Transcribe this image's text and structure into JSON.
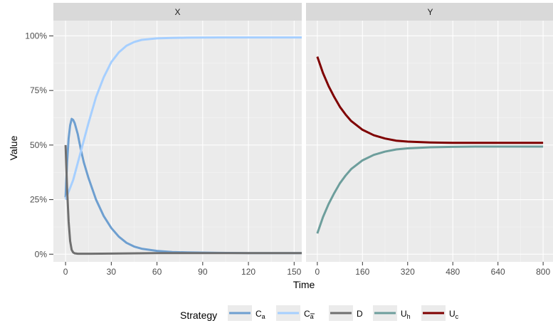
{
  "chart_data": {
    "type": "line",
    "y_label": "Value",
    "x_label": "Time",
    "legend": {
      "title": "Strategy",
      "position": "bottom",
      "entries": [
        {
          "id": "Ca",
          "base": "C",
          "sub": "a",
          "overline": false,
          "color": "#6E9FD0"
        },
        {
          "id": "Cabar",
          "base": "C",
          "sub": "a",
          "overline": true,
          "color": "#A6CFFF"
        },
        {
          "id": "D",
          "base": "D",
          "sub": "",
          "overline": false,
          "color": "#6F6F6F"
        },
        {
          "id": "Uh",
          "base": "U",
          "sub": "h",
          "overline": false,
          "color": "#6D9E9C"
        },
        {
          "id": "Uc",
          "base": "U",
          "sub": "c",
          "overline": false,
          "color": "#7F0000"
        }
      ]
    },
    "y_axis": {
      "range": [
        -3.5,
        107
      ],
      "ticks": [
        0,
        25,
        50,
        75,
        100
      ],
      "tick_labels": [
        "0%",
        "25%",
        "50%",
        "75%",
        "100%"
      ]
    },
    "panels": [
      {
        "strip": "X",
        "x_range": [
          -8,
          155
        ],
        "x_ticks": [
          0,
          30,
          60,
          90,
          120,
          150
        ],
        "series": [
          {
            "id": "Ca",
            "points": [
              [
                0,
                26
              ],
              [
                1,
                42
              ],
              [
                2,
                53
              ],
              [
                3,
                59
              ],
              [
                4,
                62
              ],
              [
                5,
                61.5
              ],
              [
                6,
                60
              ],
              [
                8,
                55
              ],
              [
                10,
                48
              ],
              [
                12,
                42
              ],
              [
                15,
                35
              ],
              [
                20,
                25
              ],
              [
                25,
                17.5
              ],
              [
                30,
                12
              ],
              [
                35,
                8
              ],
              [
                40,
                5.2
              ],
              [
                45,
                3.5
              ],
              [
                50,
                2.5
              ],
              [
                60,
                1.5
              ],
              [
                70,
                1
              ],
              [
                80,
                0.8
              ],
              [
                100,
                0.6
              ],
              [
                120,
                0.5
              ],
              [
                155,
                0.5
              ]
            ]
          },
          {
            "id": "Cabar",
            "points": [
              [
                0,
                25
              ],
              [
                5,
                34
              ],
              [
                10,
                47
              ],
              [
                15,
                60
              ],
              [
                20,
                72
              ],
              [
                25,
                81
              ],
              [
                30,
                88
              ],
              [
                35,
                92.5
              ],
              [
                40,
                95.5
              ],
              [
                45,
                97.2
              ],
              [
                50,
                98.2
              ],
              [
                60,
                98.9
              ],
              [
                70,
                99.1
              ],
              [
                80,
                99.2
              ],
              [
                100,
                99.3
              ],
              [
                155,
                99.3
              ]
            ]
          },
          {
            "id": "D",
            "points": [
              [
                0,
                50
              ],
              [
                1,
                30
              ],
              [
                2,
                15
              ],
              [
                3,
                6
              ],
              [
                4,
                2
              ],
              [
                5,
                0.8
              ],
              [
                6,
                0.4
              ],
              [
                8,
                0.2
              ],
              [
                15,
                0.2
              ],
              [
                30,
                0.3
              ],
              [
                60,
                0.5
              ],
              [
                100,
                0.5
              ],
              [
                155,
                0.5
              ]
            ]
          }
        ]
      },
      {
        "strip": "Y",
        "x_range": [
          -40,
          840
        ],
        "x_ticks": [
          0,
          160,
          320,
          480,
          640,
          800
        ],
        "series": [
          {
            "id": "Uc",
            "points": [
              [
                0,
                90.5
              ],
              [
                20,
                83
              ],
              [
                40,
                77
              ],
              [
                60,
                72
              ],
              [
                80,
                67.5
              ],
              [
                100,
                64
              ],
              [
                120,
                61
              ],
              [
                160,
                57
              ],
              [
                200,
                54.5
              ],
              [
                240,
                53
              ],
              [
                280,
                52
              ],
              [
                320,
                51.6
              ],
              [
                400,
                51.2
              ],
              [
                480,
                51
              ],
              [
                560,
                51
              ],
              [
                640,
                51
              ],
              [
                800,
                51
              ]
            ]
          },
          {
            "id": "Uh",
            "points": [
              [
                0,
                9.5
              ],
              [
                20,
                17
              ],
              [
                40,
                23
              ],
              [
                60,
                28
              ],
              [
                80,
                32.5
              ],
              [
                100,
                36
              ],
              [
                120,
                39
              ],
              [
                160,
                43
              ],
              [
                200,
                45.5
              ],
              [
                240,
                47
              ],
              [
                280,
                48
              ],
              [
                320,
                48.5
              ],
              [
                400,
                49
              ],
              [
                480,
                49.2
              ],
              [
                560,
                49.3
              ],
              [
                640,
                49.3
              ],
              [
                800,
                49.3
              ]
            ]
          }
        ]
      }
    ]
  }
}
